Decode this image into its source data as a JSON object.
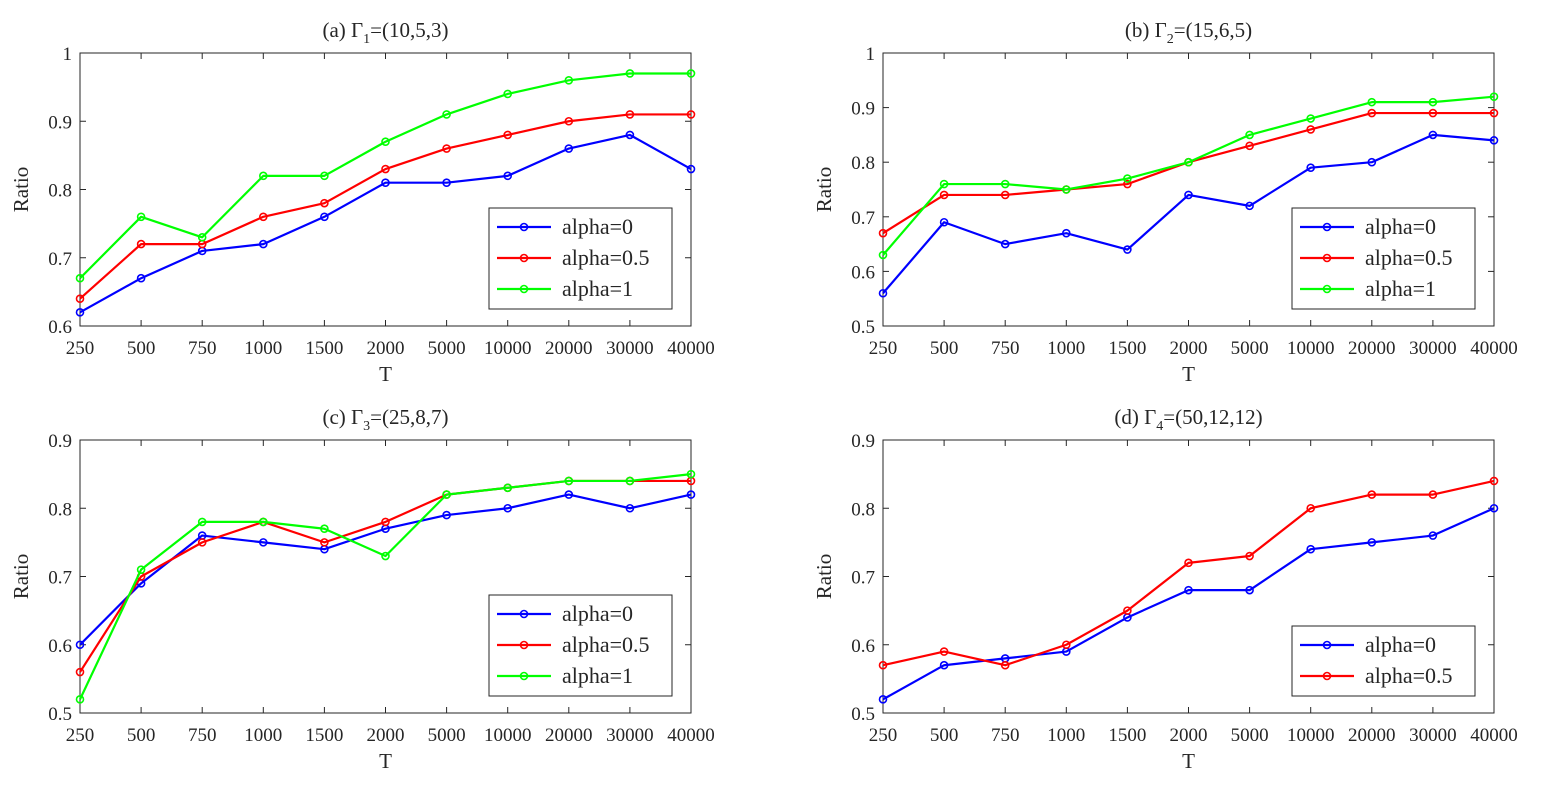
{
  "chart_data": [
    {
      "type": "line",
      "title_prefix": "(a) Γ",
      "title_subscript": "1",
      "title_suffix": "=(10,5,3)",
      "xlabel": "T",
      "ylabel": "Ratio",
      "categories": [
        "250",
        "500",
        "750",
        "1000",
        "1500",
        "2000",
        "5000",
        "10000",
        "20000",
        "30000",
        "40000"
      ],
      "ylim": [
        0.6,
        1
      ],
      "yticks": [
        "0.6",
        "0.7",
        "0.8",
        "0.9",
        "1"
      ],
      "legend_position": "bottom-right",
      "series": [
        {
          "name": "alpha=0",
          "color": "#0000ff",
          "values": [
            0.62,
            0.67,
            0.71,
            0.72,
            0.76,
            0.81,
            0.81,
            0.82,
            0.86,
            0.88,
            0.83
          ]
        },
        {
          "name": "alpha=0.5",
          "color": "#ff0000",
          "values": [
            0.64,
            0.72,
            0.72,
            0.76,
            0.78,
            0.83,
            0.86,
            0.88,
            0.9,
            0.91,
            0.91
          ]
        },
        {
          "name": "alpha=1",
          "color": "#00ff00",
          "values": [
            0.67,
            0.76,
            0.73,
            0.82,
            0.82,
            0.87,
            0.91,
            0.94,
            0.96,
            0.97,
            0.97
          ]
        }
      ]
    },
    {
      "type": "line",
      "title_prefix": "(b) Γ",
      "title_subscript": "2",
      "title_suffix": "=(15,6,5)",
      "xlabel": "T",
      "ylabel": "Ratio",
      "categories": [
        "250",
        "500",
        "750",
        "1000",
        "1500",
        "2000",
        "5000",
        "10000",
        "20000",
        "30000",
        "40000"
      ],
      "ylim": [
        0.5,
        1
      ],
      "yticks": [
        "0.5",
        "0.6",
        "0.7",
        "0.8",
        "0.9",
        "1"
      ],
      "legend_position": "bottom-right",
      "series": [
        {
          "name": "alpha=0",
          "color": "#0000ff",
          "values": [
            0.56,
            0.69,
            0.65,
            0.67,
            0.64,
            0.74,
            0.72,
            0.79,
            0.8,
            0.85,
            0.84
          ]
        },
        {
          "name": "alpha=0.5",
          "color": "#ff0000",
          "values": [
            0.67,
            0.74,
            0.74,
            0.75,
            0.76,
            0.8,
            0.83,
            0.86,
            0.89,
            0.89,
            0.89
          ]
        },
        {
          "name": "alpha=1",
          "color": "#00ff00",
          "values": [
            0.63,
            0.76,
            0.76,
            0.75,
            0.77,
            0.8,
            0.85,
            0.88,
            0.91,
            0.91,
            0.92
          ]
        }
      ]
    },
    {
      "type": "line",
      "title_prefix": "(c) Γ",
      "title_subscript": "3",
      "title_suffix": "=(25,8,7)",
      "xlabel": "T",
      "ylabel": "Ratio",
      "categories": [
        "250",
        "500",
        "750",
        "1000",
        "1500",
        "2000",
        "5000",
        "10000",
        "20000",
        "30000",
        "40000"
      ],
      "ylim": [
        0.5,
        0.9
      ],
      "yticks": [
        "0.5",
        "0.6",
        "0.7",
        "0.8",
        "0.9"
      ],
      "legend_position": "bottom-right",
      "series": [
        {
          "name": "alpha=0",
          "color": "#0000ff",
          "values": [
            0.6,
            0.69,
            0.76,
            0.75,
            0.74,
            0.77,
            0.79,
            0.8,
            0.82,
            0.8,
            0.82
          ]
        },
        {
          "name": "alpha=0.5",
          "color": "#ff0000",
          "values": [
            0.56,
            0.7,
            0.75,
            0.78,
            0.75,
            0.78,
            0.82,
            0.83,
            0.84,
            0.84,
            0.84
          ]
        },
        {
          "name": "alpha=1",
          "color": "#00ff00",
          "values": [
            0.52,
            0.71,
            0.78,
            0.78,
            0.77,
            0.73,
            0.82,
            0.83,
            0.84,
            0.84,
            0.85
          ]
        }
      ]
    },
    {
      "type": "line",
      "title_prefix": "(d) Γ",
      "title_subscript": "4",
      "title_suffix": "=(50,12,12)",
      "xlabel": "T",
      "ylabel": "Ratio",
      "categories": [
        "250",
        "500",
        "750",
        "1000",
        "1500",
        "2000",
        "5000",
        "10000",
        "20000",
        "30000",
        "40000"
      ],
      "ylim": [
        0.5,
        0.9
      ],
      "yticks": [
        "0.5",
        "0.6",
        "0.7",
        "0.8",
        "0.9"
      ],
      "legend_position": "bottom-right",
      "series": [
        {
          "name": "alpha=0",
          "color": "#0000ff",
          "values": [
            0.52,
            0.57,
            0.58,
            0.59,
            0.64,
            0.68,
            0.68,
            0.74,
            0.75,
            0.76,
            0.8
          ]
        },
        {
          "name": "alpha=0.5",
          "color": "#ff0000",
          "values": [
            0.57,
            0.59,
            0.57,
            0.6,
            0.65,
            0.72,
            0.73,
            0.8,
            0.82,
            0.82,
            0.84
          ]
        }
      ]
    }
  ]
}
